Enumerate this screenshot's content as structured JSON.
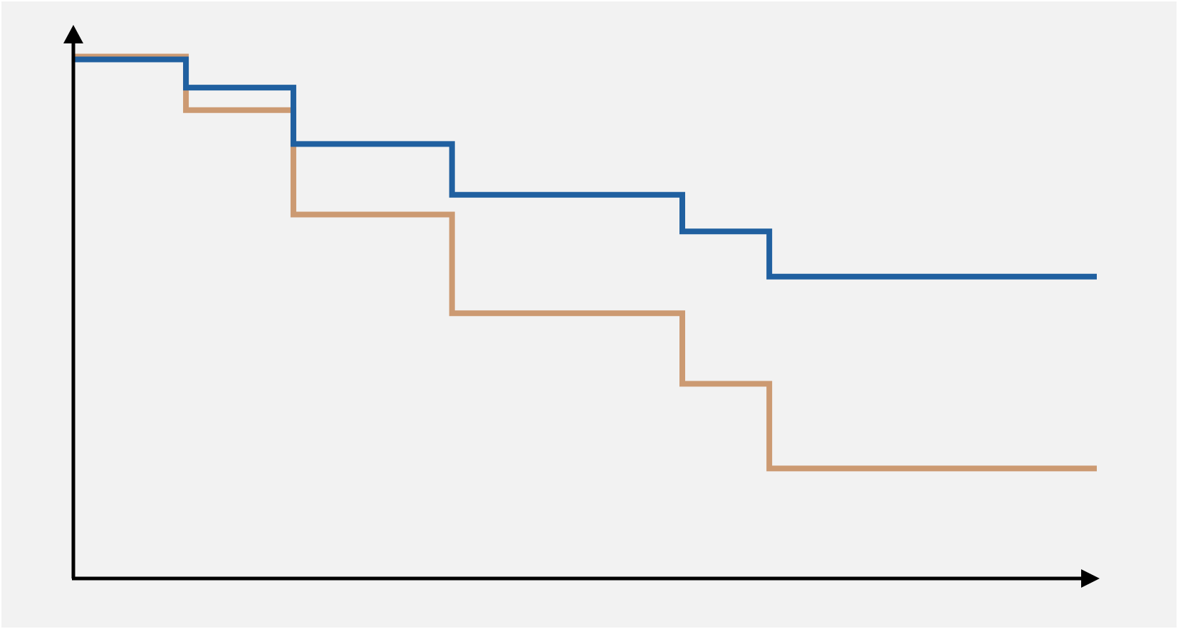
{
  "colors": {
    "background": "#f2f2f2",
    "axis": "#000000",
    "series_blue": "#2060a0",
    "series_tan": "#cc9a72"
  },
  "chart_data": {
    "type": "line",
    "step": true,
    "title": "",
    "xlabel": "",
    "ylabel": "",
    "ticks_shown": false,
    "grid": false,
    "legend": "none",
    "xlim": [
      0,
      100
    ],
    "ylim": [
      0,
      1
    ],
    "series": [
      {
        "color": "#2060a0",
        "x": [
          0,
          11,
          21.5,
          37,
          59.5,
          68,
          100
        ],
        "y": [
          0.92,
          0.87,
          0.77,
          0.68,
          0.615,
          0.535,
          0.535
        ]
      },
      {
        "color": "#cc9a72",
        "x": [
          0,
          11,
          21.5,
          37,
          59.5,
          68,
          100
        ],
        "y": [
          0.925,
          0.83,
          0.645,
          0.47,
          0.345,
          0.195,
          0.195
        ]
      }
    ]
  }
}
